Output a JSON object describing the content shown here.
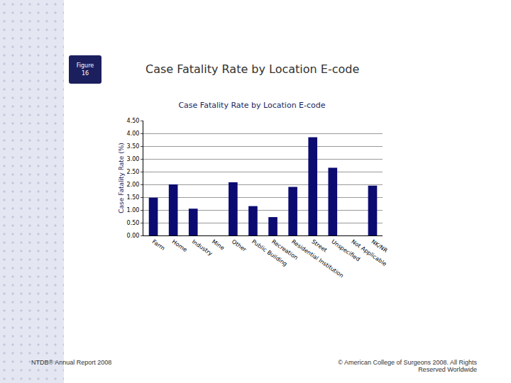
{
  "figure_label": "Figure 16",
  "slide_title": "Case Fatality Rate by Location E-code",
  "footer_left": "NTDB® Annual Report 2008",
  "footer_right": "© American College of Surgeons 2008. All Rights Reserved Worldwide",
  "chart_data": {
    "type": "bar",
    "title": "Case Fatality Rate by Location E-code",
    "y_label": "Case Fatality Rate (%)",
    "categories": [
      "Farm",
      "Home",
      "Industry",
      "Mine",
      "Other",
      "Public Building",
      "Recreation",
      "Residential Institution",
      "Street",
      "Unspecified",
      "Not Applicable",
      "NK/NR"
    ],
    "values": [
      1.48,
      2.0,
      1.05,
      0,
      2.08,
      1.15,
      0.72,
      1.9,
      3.85,
      2.65,
      0,
      1.95
    ],
    "color": "#0b0b72",
    "ylim": [
      0,
      4.5
    ],
    "yticks": [
      {
        "value": 0,
        "label": "0.00"
      },
      {
        "value": 0.5,
        "label": "0.50"
      },
      {
        "value": 1,
        "label": "1.00"
      },
      {
        "value": 1.5,
        "label": "1.50"
      },
      {
        "value": 2,
        "label": "2.00"
      },
      {
        "value": 2.5,
        "label": "2.50"
      },
      {
        "value": 3,
        "label": "3.00"
      },
      {
        "value": 3.5,
        "label": "3.50"
      },
      {
        "value": 4,
        "label": "4.00"
      },
      {
        "value": 4.5,
        "label": "4.50"
      }
    ],
    "grid": true
  }
}
